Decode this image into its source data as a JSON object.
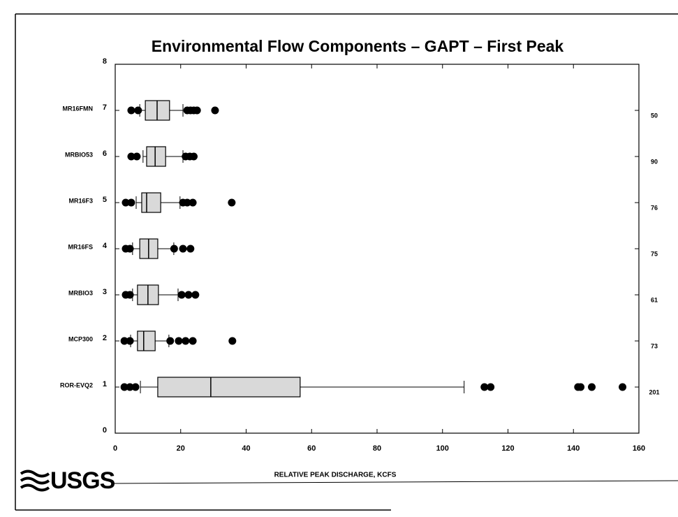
{
  "chart_data": {
    "type": "box",
    "title": "Environmental Flow Components – GAPT – First Peak",
    "xlabel": "RELATIVE PEAK DISCHARGE, KCFS",
    "logo": "USGS",
    "xlim": [
      0,
      160
    ],
    "xticks": [
      0,
      20,
      40,
      60,
      80,
      100,
      120,
      140,
      160
    ],
    "ylim": [
      0,
      8
    ],
    "yticks": [
      0,
      1,
      2,
      3,
      4,
      5,
      6,
      7,
      8
    ],
    "box_color": "#d9d9d9",
    "series": [
      {
        "name": "ROR-EVQ2",
        "y": 1,
        "whislo": 7.7,
        "q1": 13,
        "med": 29.2,
        "q3": 56.5,
        "whishi": 106.6,
        "fliers": [
          2.8,
          4.5,
          6.2,
          112.8,
          114.7,
          141.4,
          142.2,
          145.6,
          155
        ],
        "n": 201
      },
      {
        "name": "MCP300",
        "y": 2,
        "whislo": 4.7,
        "q1": 6.8,
        "med": 8.7,
        "q3": 12.2,
        "whishi": 16.4,
        "fliers": [
          2.8,
          4.5,
          16.8,
          19.4,
          21.5,
          23.7,
          35.8
        ],
        "n": 73
      },
      {
        "name": "MRBIO3",
        "y": 3,
        "whislo": 5.3,
        "q1": 6.8,
        "med": 10,
        "q3": 13.2,
        "whishi": 19.2,
        "fliers": [
          3.2,
          4.5,
          20.3,
          22.4,
          24.5
        ],
        "n": 61
      },
      {
        "name": "MR16FS",
        "y": 4,
        "whislo": 5.3,
        "q1": 7.5,
        "med": 10.2,
        "q3": 13,
        "whishi": 17.9,
        "fliers": [
          3.2,
          4.5,
          18,
          20.7,
          23
        ],
        "n": 75
      },
      {
        "name": "MR16F3",
        "y": 5,
        "whislo": 6.4,
        "q1": 8.1,
        "med": 9.6,
        "q3": 13.9,
        "whishi": 19.8,
        "fliers": [
          3.2,
          4.9,
          20.7,
          22,
          23.7,
          35.6
        ],
        "n": 76
      },
      {
        "name": "MRBIO53",
        "y": 6,
        "whislo": 8.5,
        "q1": 9.6,
        "med": 12.2,
        "q3": 15.4,
        "whishi": 20.7,
        "fliers": [
          4.9,
          6.6,
          21.5,
          22.8,
          24
        ],
        "n": 90
      },
      {
        "name": "MR16FMN",
        "y": 7,
        "whislo": 7.5,
        "q1": 9.2,
        "med": 12.8,
        "q3": 16.6,
        "whishi": 20.7,
        "fliers": [
          4.9,
          7,
          22,
          23,
          24,
          25,
          30.5
        ],
        "n": 50
      }
    ]
  }
}
